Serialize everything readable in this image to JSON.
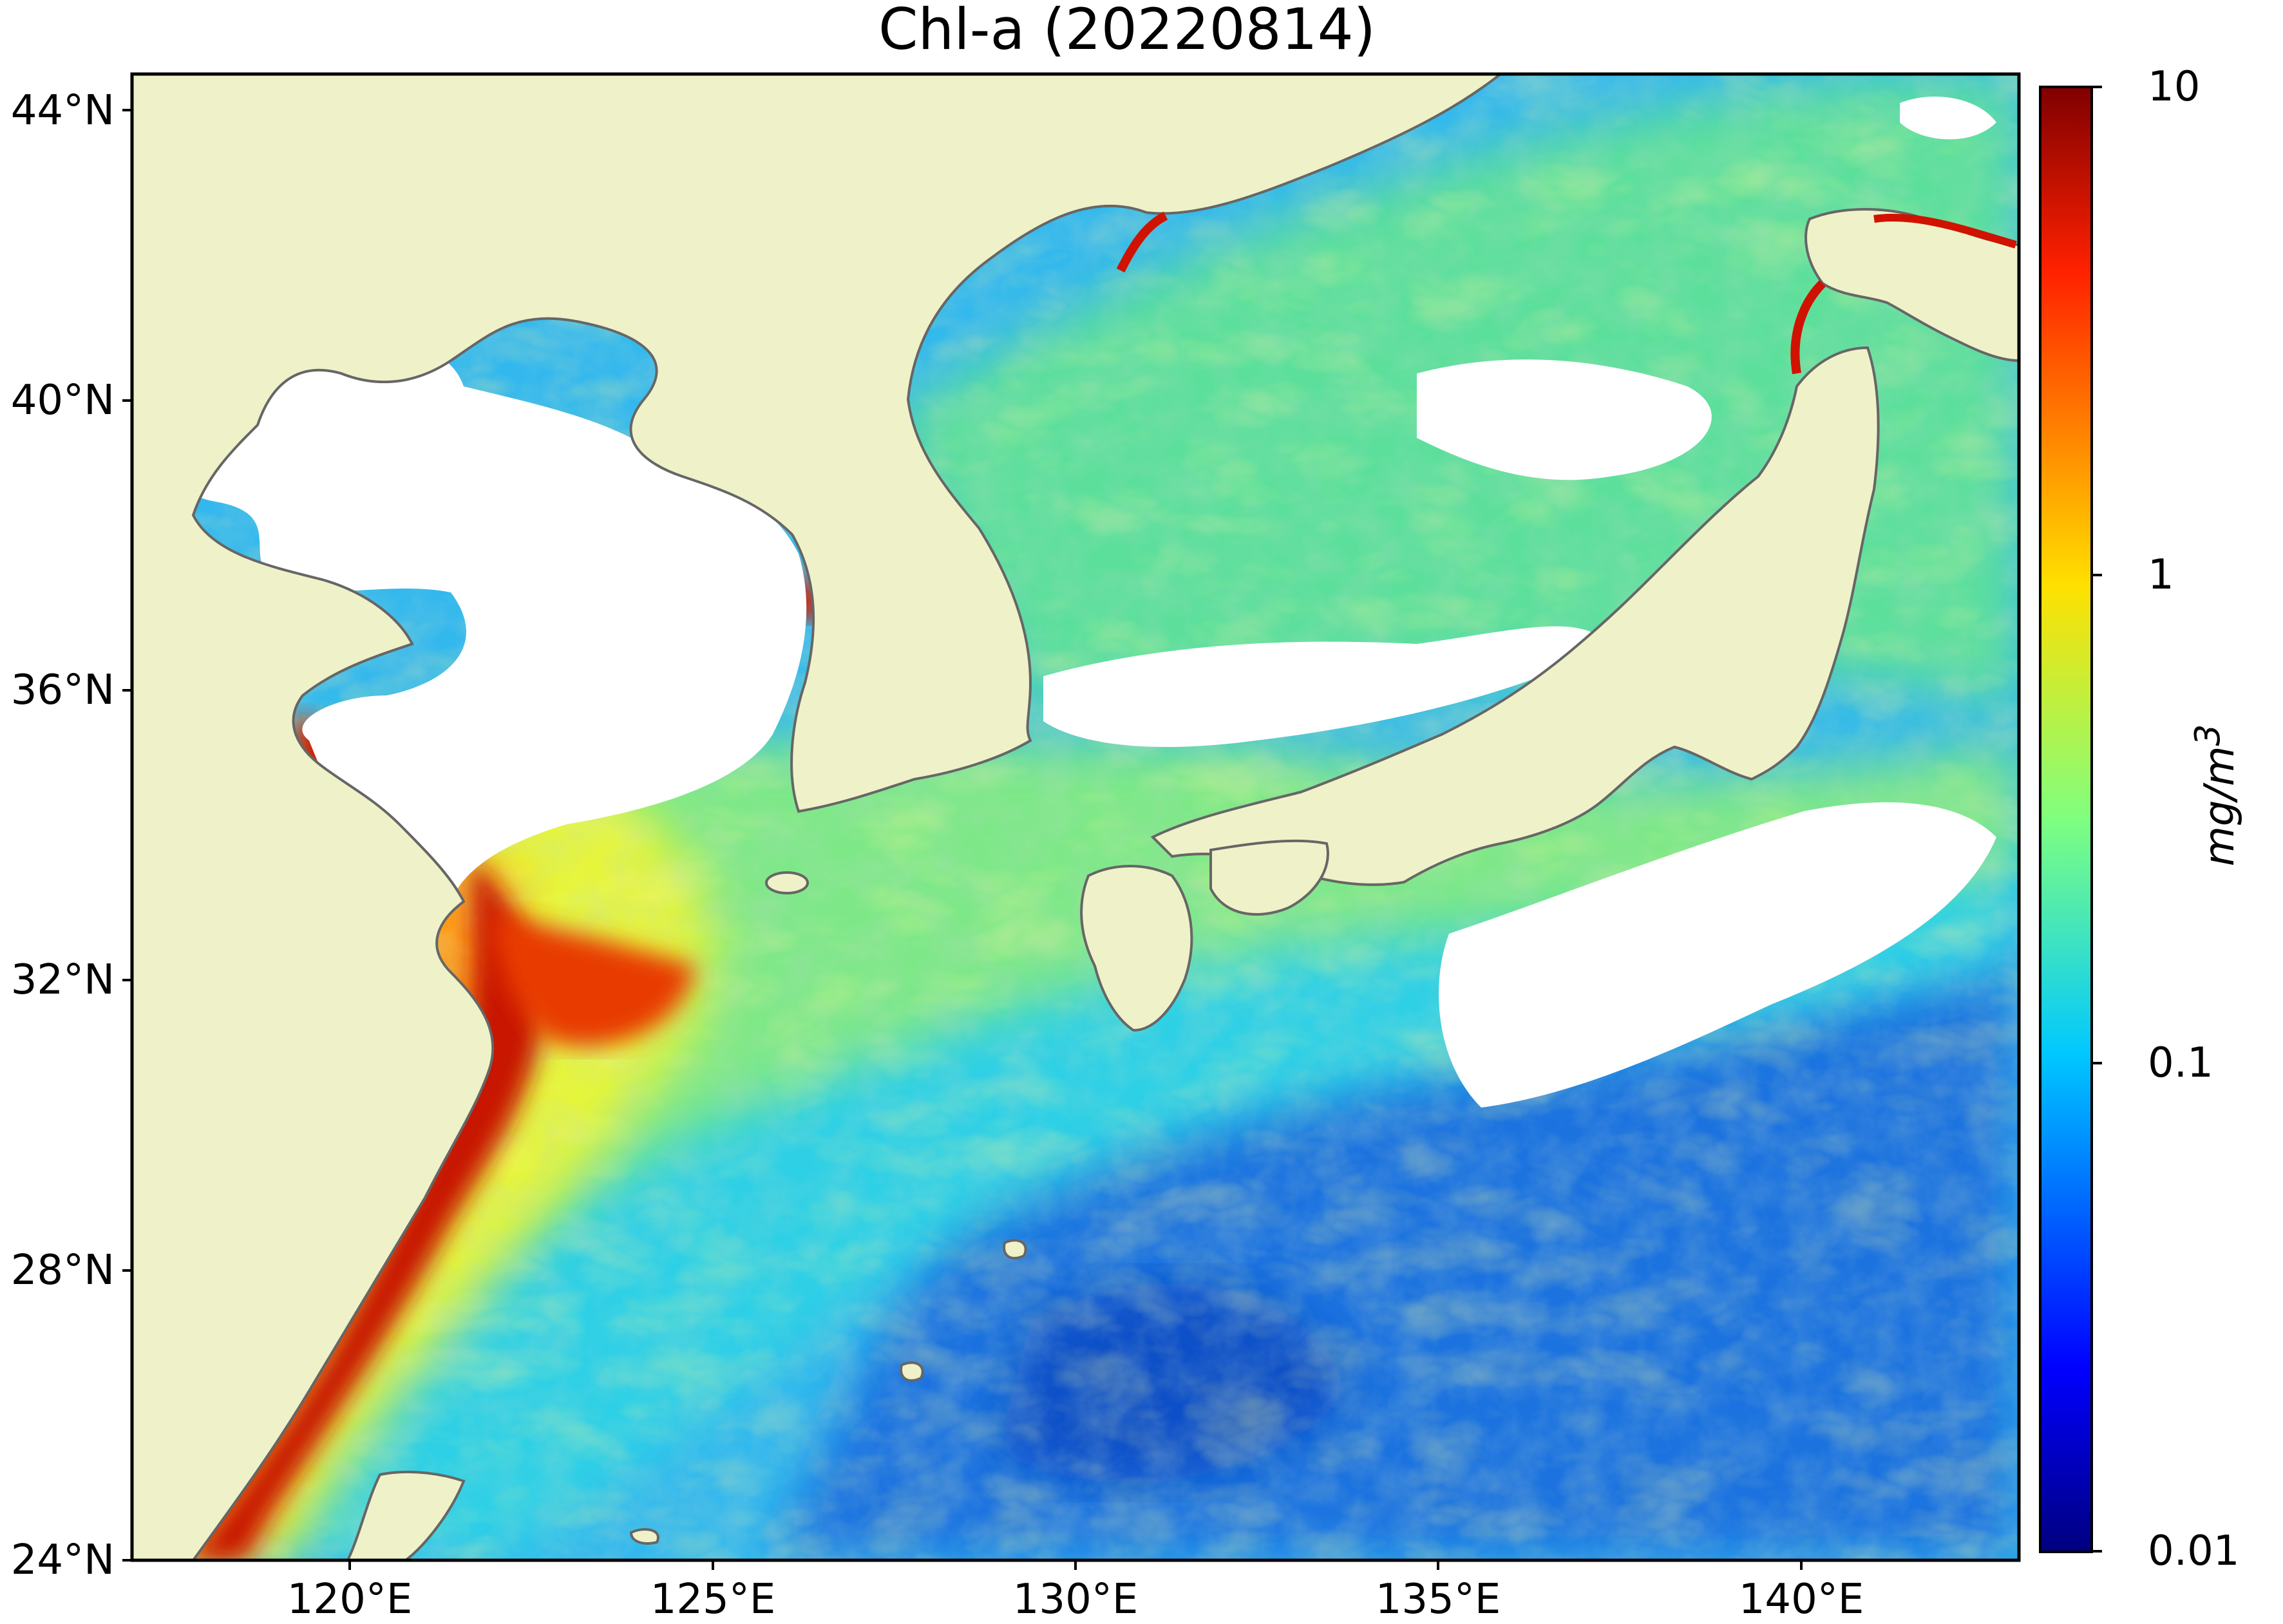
{
  "title": "Chl-a (20220814)",
  "map": {
    "projection": "PlateCarree",
    "lon_range": [
      117,
      143
    ],
    "lat_range": [
      24,
      44.5
    ],
    "land_color": "#eff2c8",
    "no_data_color": "#ffffff",
    "coastline_color": "#666666",
    "lat_ticks": [
      "24°N",
      "28°N",
      "32°N",
      "36°N",
      "40°N",
      "44°N"
    ],
    "lon_ticks": [
      "120°E",
      "125°E",
      "130°E",
      "135°E",
      "140°E"
    ]
  },
  "colorbar": {
    "colormap": "jet",
    "scale": "log",
    "range": [
      0.01,
      10
    ],
    "ticks": [
      "10",
      "1",
      "0.1",
      "0.01"
    ],
    "unit": "mg/m³",
    "unit_html": "mg/m<sup>3</sup>"
  }
}
